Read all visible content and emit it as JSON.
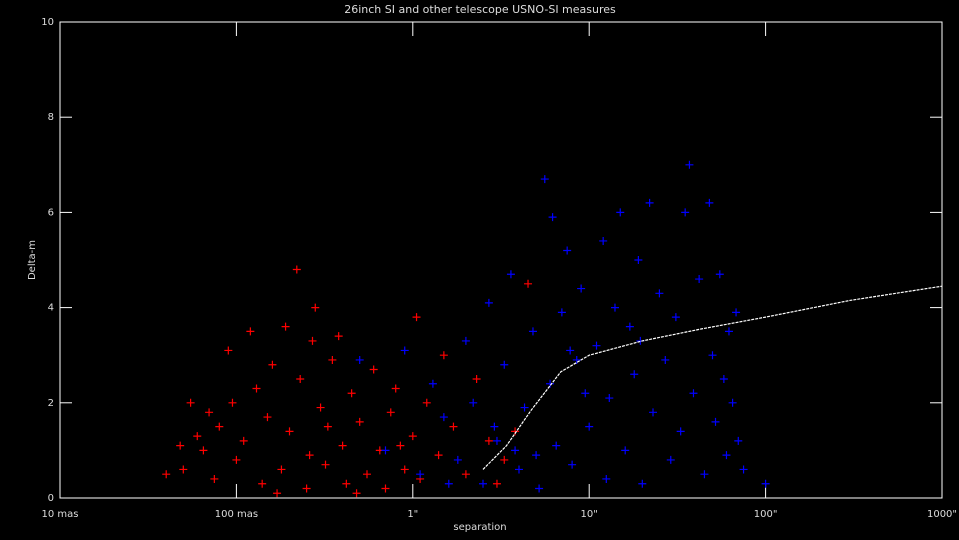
{
  "chart_data": {
    "type": "scatter",
    "title": "26inch SI and other telescope USNO-SI measures",
    "xlabel": "separation",
    "ylabel": "Delta-m",
    "xscale": "log",
    "xlim": [
      0.01,
      1000
    ],
    "xticks": [
      {
        "value": 0.01,
        "label": "10 mas"
      },
      {
        "value": 0.1,
        "label": "100 mas"
      },
      {
        "value": 1,
        "label": "1\""
      },
      {
        "value": 10,
        "label": "10\""
      },
      {
        "value": 100,
        "label": "100\""
      },
      {
        "value": 1000,
        "label": "1000\""
      }
    ],
    "ylim": [
      0,
      10
    ],
    "yticks": [
      0,
      2,
      4,
      6,
      8,
      10
    ],
    "series": [
      {
        "color": "#ff0000",
        "x": [
          0.04,
          0.048,
          0.05,
          0.055,
          0.06,
          0.065,
          0.07,
          0.075,
          0.08,
          0.09,
          0.095,
          0.1,
          0.11,
          0.12,
          0.13,
          0.14,
          0.15,
          0.16,
          0.18,
          0.19,
          0.2,
          0.22,
          0.23,
          0.25,
          0.27,
          0.28,
          0.3,
          0.32,
          0.35,
          0.38,
          0.4,
          0.42,
          0.45,
          0.5,
          0.55,
          0.6,
          0.65,
          0.7,
          0.75,
          0.8,
          0.9,
          1.0,
          1.05,
          1.1,
          1.2,
          1.4,
          1.5,
          1.7,
          2.0,
          2.3,
          2.7,
          3.0,
          3.3,
          3.8,
          4.5,
          0.26,
          0.33,
          0.48,
          0.85,
          0.17
        ],
        "y": [
          0.5,
          1.1,
          0.6,
          2.0,
          1.3,
          1.0,
          1.8,
          0.4,
          1.5,
          3.1,
          2.0,
          0.8,
          1.2,
          3.5,
          2.3,
          0.3,
          1.7,
          2.8,
          0.6,
          3.6,
          1.4,
          4.8,
          2.5,
          0.2,
          3.3,
          4.0,
          1.9,
          0.7,
          2.9,
          3.4,
          1.1,
          0.3,
          2.2,
          1.6,
          0.5,
          2.7,
          1.0,
          0.2,
          1.8,
          2.3,
          0.6,
          1.3,
          3.8,
          0.4,
          2.0,
          0.9,
          3.0,
          1.5,
          0.5,
          2.5,
          1.2,
          0.3,
          0.8,
          1.4,
          4.5,
          0.9,
          1.5,
          0.1,
          1.1,
          0.1
        ]
      },
      {
        "color": "#0000ff",
        "x": [
          0.5,
          0.7,
          0.9,
          1.1,
          1.3,
          1.5,
          1.8,
          2.0,
          2.2,
          2.5,
          2.7,
          3.0,
          3.3,
          3.6,
          4.0,
          4.3,
          4.8,
          5.2,
          5.6,
          6.0,
          6.2,
          6.5,
          7.0,
          7.5,
          8.0,
          8.5,
          9.0,
          10,
          11,
          12,
          12.5,
          13,
          14,
          15,
          16,
          17,
          18,
          19,
          20,
          22,
          23,
          25,
          27,
          29,
          31,
          33,
          35,
          37,
          39,
          42,
          45,
          48,
          50,
          52,
          55,
          58,
          60,
          62,
          65,
          68,
          70,
          75,
          100,
          3.8,
          5.0,
          9.5,
          2.9,
          1.6,
          7.8,
          19.5
        ],
        "y": [
          2.9,
          1.0,
          3.1,
          0.5,
          2.4,
          1.7,
          0.8,
          3.3,
          2.0,
          0.3,
          4.1,
          1.2,
          2.8,
          4.7,
          0.6,
          1.9,
          3.5,
          0.2,
          6.7,
          2.4,
          5.9,
          1.1,
          3.9,
          5.2,
          0.7,
          2.9,
          4.4,
          1.5,
          3.2,
          5.4,
          0.4,
          2.1,
          4.0,
          6.0,
          1.0,
          3.6,
          2.6,
          5.0,
          0.3,
          6.2,
          1.8,
          4.3,
          2.9,
          0.8,
          3.8,
          1.4,
          6.0,
          7.0,
          2.2,
          4.6,
          0.5,
          6.2,
          3.0,
          1.6,
          4.7,
          2.5,
          0.9,
          3.5,
          2.0,
          3.9,
          1.2,
          0.6,
          0.3,
          1.0,
          0.9,
          2.2,
          1.5,
          0.3,
          3.1,
          3.3
        ]
      }
    ],
    "curve": {
      "color": "#ffffff",
      "x": [
        2.5,
        3.4,
        4.7,
        6.9,
        10,
        20,
        43,
        100,
        300,
        1000
      ],
      "y": [
        0.6,
        1.1,
        1.85,
        2.65,
        3.0,
        3.3,
        3.55,
        3.8,
        4.15,
        4.45
      ]
    }
  }
}
